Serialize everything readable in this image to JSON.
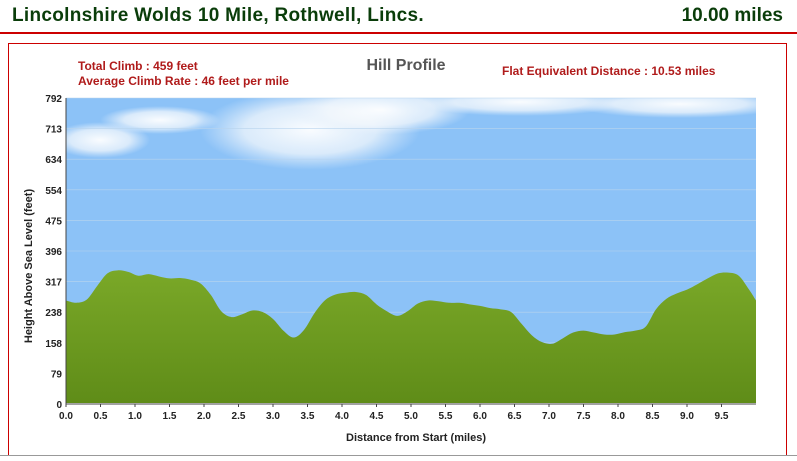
{
  "header": {
    "race_title": "Lincolnshire Wolds 10 Mile, Rothwell, Lincs.",
    "race_distance": "10.00 miles"
  },
  "stats": {
    "total_climb": "Total Climb : 459 feet",
    "average_climb_rate": "Average Climb Rate : 46 feet per mile",
    "flat_equivalent": "Flat Equivalent Distance : 10.53 miles"
  },
  "colors": {
    "sky": "#8cc2f7",
    "terrain": "#6c9a1f",
    "title_text": "#0a3d0a",
    "stat_text": "#b01b1b",
    "frame_border": "#cc0000"
  },
  "chart_data": {
    "type": "area",
    "title": "Hill Profile",
    "xlabel": "Distance from Start (miles)",
    "ylabel": "Height Above Sea Level (feet)",
    "xlim": [
      0,
      10
    ],
    "ylim": [
      0,
      792
    ],
    "yticks": [
      "0",
      "79",
      "158",
      "238",
      "317",
      "396",
      "475",
      "554",
      "634",
      "713",
      "792"
    ],
    "xticks": [
      "0.0",
      "0.5",
      "1.0",
      "1.5",
      "2.0",
      "2.5",
      "3.0",
      "3.5",
      "4.0",
      "4.5",
      "5.0",
      "5.5",
      "6.0",
      "6.5",
      "7.0",
      "7.5",
      "8.0",
      "8.5",
      "9.0",
      "9.5"
    ],
    "grid": true,
    "series": [
      {
        "x": [
          0,
          0.15,
          0.3,
          0.45,
          0.6,
          0.75,
          0.9,
          1.05,
          1.2,
          1.35,
          1.5,
          1.65,
          1.8,
          1.95,
          2.1,
          2.25,
          2.4,
          2.55,
          2.7,
          2.85,
          3.0,
          3.15,
          3.3,
          3.45,
          3.6,
          3.75,
          3.9,
          4.05,
          4.2,
          4.35,
          4.5,
          4.65,
          4.8,
          4.95,
          5.1,
          5.25,
          5.4,
          5.55,
          5.7,
          5.85,
          6.0,
          6.15,
          6.3,
          6.45,
          6.6,
          6.75,
          6.9,
          7.05,
          7.2,
          7.35,
          7.5,
          7.65,
          7.8,
          7.95,
          8.1,
          8.25,
          8.4,
          8.55,
          8.7,
          8.85,
          9.0,
          9.15,
          9.3,
          9.45,
          9.6,
          9.75,
          9.9,
          10.0
        ],
        "y": [
          268,
          262,
          270,
          305,
          338,
          346,
          342,
          332,
          336,
          330,
          325,
          326,
          322,
          312,
          282,
          240,
          225,
          232,
          242,
          238,
          220,
          190,
          172,
          192,
          235,
          268,
          283,
          288,
          290,
          282,
          258,
          240,
          228,
          240,
          260,
          268,
          266,
          262,
          262,
          258,
          254,
          248,
          245,
          238,
          208,
          178,
          160,
          156,
          170,
          185,
          190,
          185,
          180,
          180,
          186,
          190,
          200,
          245,
          272,
          286,
          296,
          310,
          325,
          338,
          340,
          332,
          296,
          268
        ]
      }
    ]
  }
}
